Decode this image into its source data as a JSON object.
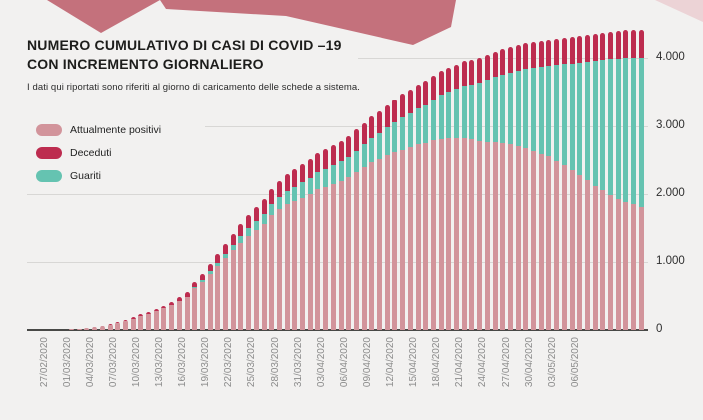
{
  "page": {
    "background": "#f2f1f0"
  },
  "decor": {
    "banner_color": "#c4717c",
    "corner_triangle_color": "#ecd3d6"
  },
  "header": {
    "title_line1": "NUMERO CUMULATIVO DI CASI DI COVID –19",
    "title_line2": "CON INCREMENTO GIORNALIERO",
    "subtitle": "I dati qui riportati sono riferiti al giorno di caricamento delle schede a sistema."
  },
  "legend": [
    {
      "label": "Attualmente positivi",
      "color": "#d2949b"
    },
    {
      "label": "Deceduti",
      "color": "#bd2c4f"
    },
    {
      "label": "Guariti",
      "color": "#65c3b1"
    }
  ],
  "chart_data": {
    "type": "bar",
    "stacked": true,
    "title": "NUMERO CUMULATIVO DI CASI DI COVID –19 CON INCREMENTO GIORNALIERO",
    "xlabel": "",
    "ylabel": "",
    "ylim": [
      0,
      4400
    ],
    "grid": true,
    "legend_position": "top-left",
    "start_date": "27/02/2020",
    "bar_interval_days": 1,
    "x_tick_every_n_bars": 3,
    "x_tick_labels": [
      "27/02/2020",
      "01/03/2020",
      "04/03/2020",
      "07/03/2020",
      "10/03/2020",
      "13/03/2020",
      "16/03/2020",
      "19/03/2020",
      "22/03/2020",
      "25/03/2020",
      "28/03/2020",
      "31/03/2020",
      "03/04/2020",
      "06/04/2020",
      "09/04/2020",
      "12/04/2020",
      "15/04/2020",
      "18/04/2020",
      "21/04/2020",
      "24/04/2020",
      "27/04/2020",
      "30/04/2020",
      "03/05/2020",
      "06/05/2020"
    ],
    "y_tick_labels": [
      "0",
      "1.000",
      "2.000",
      "3.000",
      "4.000"
    ],
    "y_tick_values": [
      0,
      1000,
      2000,
      3000,
      4000
    ],
    "stack_order_bottom_to_top": [
      "Attualmente positivi",
      "Guariti",
      "Deceduti"
    ],
    "series": [
      {
        "name": "Attualmente positivi",
        "color": "#d2949b",
        "values": [
          0,
          1,
          2,
          3,
          6,
          9,
          13,
          25,
          43,
          59,
          80,
          104,
          138,
          169,
          210,
          241,
          283,
          322,
          365,
          422,
          487,
          615,
          710,
          825,
          935,
          1055,
          1170,
          1285,
          1380,
          1472,
          1562,
          1684,
          1777,
          1846,
          1893,
          1945,
          1993,
          2074,
          2103,
          2152,
          2194,
          2251,
          2324,
          2399,
          2465,
          2511,
          2572,
          2613,
          2651,
          2687,
          2728,
          2747,
          2788,
          2810,
          2817,
          2819,
          2821,
          2803,
          2780,
          2772,
          2764,
          2751,
          2734,
          2707,
          2675,
          2633,
          2581,
          2559,
          2492,
          2425,
          2358,
          2281,
          2199,
          2122,
          2055,
          1989,
          1927,
          1886,
          1850,
          1804
        ]
      },
      {
        "name": "Guariti",
        "color": "#65c3b1",
        "values": [
          0,
          0,
          0,
          0,
          0,
          0,
          0,
          0,
          0,
          0,
          0,
          0,
          0,
          0,
          0,
          0,
          0,
          0,
          0,
          0,
          5,
          15,
          25,
          38,
          55,
          70,
          85,
          100,
          115,
          130,
          148,
          163,
          178,
          195,
          210,
          225,
          240,
          252,
          262,
          272,
          285,
          298,
          315,
          335,
          360,
          385,
          415,
          445,
          478,
          508,
          538,
          565,
          600,
          640,
          680,
          720,
          765,
          805,
          850,
          900,
          950,
          1000,
          1050,
          1105,
          1160,
          1220,
          1285,
          1320,
          1400,
          1480,
          1560,
          1650,
          1745,
          1835,
          1915,
          1990,
          2060,
          2110,
          2150,
          2200
        ]
      },
      {
        "name": "Deceduti",
        "color": "#bd2c4f",
        "values": [
          0,
          0,
          0,
          0,
          0,
          0,
          0,
          0,
          2,
          3,
          5,
          8,
          12,
          16,
          20,
          24,
          32,
          38,
          45,
          58,
          68,
          80,
          95,
          112,
          130,
          145,
          160,
          175,
          190,
          203,
          215,
          228,
          240,
          252,
          262,
          270,
          277,
          284,
          290,
          296,
          301,
          306,
          311,
          316,
          320,
          324,
          328,
          332,
          336,
          340,
          344,
          348,
          352,
          355,
          358,
          361,
          364,
          367,
          370,
          373,
          376,
          379,
          381,
          383,
          385,
          387,
          389,
          391,
          393,
          395,
          397,
          399,
          401,
          403,
          405,
          406,
          408,
          409,
          410,
          411
        ]
      }
    ]
  }
}
